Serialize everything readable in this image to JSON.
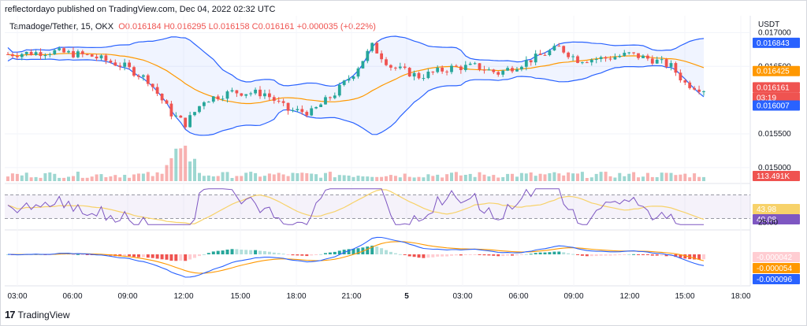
{
  "header": {
    "publisher": "reflectordayo published on TradingView.com, Dec 04, 2022 02:32 UTC"
  },
  "legend": {
    "symbol": "Tamadoge/Tether, 15, OKX",
    "open": "O0.016184",
    "high": "H0.016295",
    "low": "L0.016158",
    "close": "C0.016161",
    "change": "+0.000035 (+0.22%)"
  },
  "footer": {
    "brand": "TradingView",
    "logo_glyph": "17"
  },
  "colors": {
    "up": "#26a69a",
    "down": "#ef5350",
    "band": "#2962ff",
    "basis": "#ff9800",
    "rsi": "#7e57c2",
    "rsi_ma": "#f7d26a"
  },
  "chart_data": [
    {
      "type": "candlestick",
      "currency": "USDT",
      "ylim": [
        0.0148,
        0.01725
      ],
      "y_ticks": [
        "0.017000",
        "0.016500",
        "0.015500",
        "0.015000"
      ],
      "x_ticks": [
        "03:00",
        "06:00",
        "09:00",
        "12:00",
        "15:00",
        "18:00",
        "21:00",
        "5",
        "03:00",
        "06:00",
        "09:00",
        "12:00",
        "15:00",
        "18:00"
      ],
      "price_labels": {
        "upper_band": "0.016843",
        "basis": "0.016425",
        "last": "0.016161",
        "countdown": "03:19",
        "lower_band": "0.016007",
        "volume": "113.491K"
      },
      "overlays": [
        "Bollinger Bands upper",
        "Bollinger Bands basis",
        "Bollinger Bands lower"
      ]
    },
    {
      "type": "line",
      "indicator": "RSI",
      "ylim": [
        15,
        85
      ],
      "levels": [
        70,
        30
      ],
      "y_ticks": [
        "25.00"
      ],
      "labels": {
        "rsi_ma": "43.98",
        "rsi": "40.08"
      }
    },
    {
      "type": "bar",
      "indicator": "MACD",
      "labels": {
        "histogram": "-0.000042",
        "signal": "-0.000054",
        "macd": "-0.000096"
      }
    }
  ]
}
